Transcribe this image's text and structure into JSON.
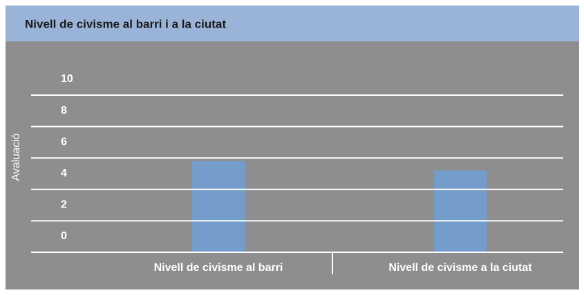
{
  "chart_data": {
    "type": "bar",
    "title": "Nivell de civisme al barri i a la ciutat",
    "y_label": "Avaluació",
    "categories": [
      "Nivell de civisme al barri",
      "Nivell de civisme a la ciutat"
    ],
    "values": [
      5.8,
      5.2
    ],
    "color": "#759dcb",
    "ylim": [
      0,
      10
    ],
    "yticks": [
      0,
      2,
      4,
      6,
      8,
      10
    ],
    "grid": true
  }
}
